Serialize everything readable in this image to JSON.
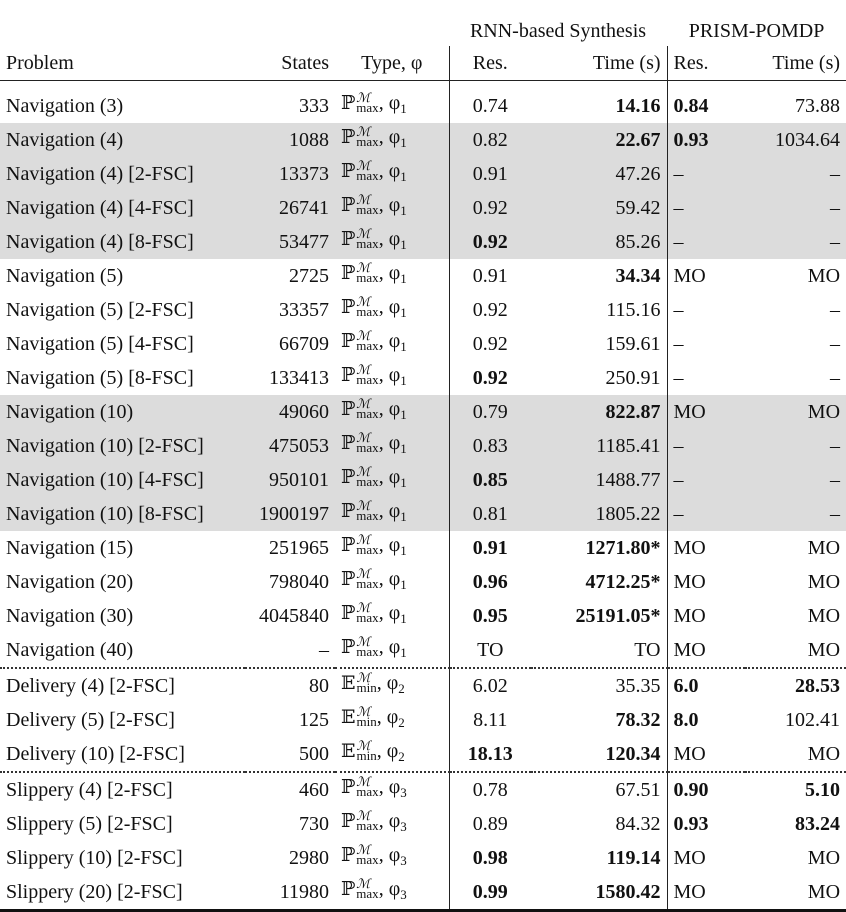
{
  "header": {
    "group_rnn": "RNN-based Synthesis",
    "group_prism": "PRISM-POMDP",
    "columns": [
      "Problem",
      "States",
      "Type, φ",
      "Res.",
      "Time (s)",
      "Res.",
      "Time (s)"
    ]
  },
  "table": {
    "rows": [
      {
        "cells": [
          "Navigation (3)",
          "333",
          "0.74",
          "14.16",
          "0.84",
          "73.88"
        ],
        "type": {
          "symbol": "ℙ",
          "sup": "ℳ",
          "sub": "max",
          "phi": ", φ",
          "index": "1"
        },
        "bold": [
          3,
          4
        ],
        "shaded": false,
        "dotted": false
      },
      {
        "cells": [
          "Navigation (4)",
          "1088",
          "0.82",
          "22.67",
          "0.93",
          "1034.64"
        ],
        "type": {
          "symbol": "ℙ",
          "sup": "ℳ",
          "sub": "max",
          "phi": ", φ",
          "index": "1"
        },
        "bold": [
          3,
          4
        ],
        "shaded": true,
        "dotted": false
      },
      {
        "cells": [
          "Navigation (4) [2-FSC]",
          "13373",
          "0.91",
          "47.26",
          "–",
          "–"
        ],
        "type": {
          "symbol": "ℙ",
          "sup": "ℳ",
          "sub": "max",
          "phi": ", φ",
          "index": "1"
        },
        "bold": [],
        "shaded": true,
        "dotted": false
      },
      {
        "cells": [
          "Navigation (4) [4-FSC]",
          "26741",
          "0.92",
          "59.42",
          "–",
          "–"
        ],
        "type": {
          "symbol": "ℙ",
          "sup": "ℳ",
          "sub": "max",
          "phi": ", φ",
          "index": "1"
        },
        "bold": [],
        "shaded": true,
        "dotted": false
      },
      {
        "cells": [
          "Navigation (4) [8-FSC]",
          "53477",
          "0.92",
          "85.26",
          "–",
          "–"
        ],
        "type": {
          "symbol": "ℙ",
          "sup": "ℳ",
          "sub": "max",
          "phi": ", φ",
          "index": "1"
        },
        "bold": [
          2
        ],
        "shaded": true,
        "dotted": false
      },
      {
        "cells": [
          "Navigation (5)",
          "2725",
          "0.91",
          "34.34",
          "MO",
          "MO"
        ],
        "type": {
          "symbol": "ℙ",
          "sup": "ℳ",
          "sub": "max",
          "phi": ", φ",
          "index": "1"
        },
        "bold": [
          3
        ],
        "shaded": false,
        "dotted": false
      },
      {
        "cells": [
          "Navigation (5) [2-FSC]",
          "33357",
          "0.92",
          "115.16",
          "–",
          "–"
        ],
        "type": {
          "symbol": "ℙ",
          "sup": "ℳ",
          "sub": "max",
          "phi": ", φ",
          "index": "1"
        },
        "bold": [],
        "shaded": false,
        "dotted": false
      },
      {
        "cells": [
          "Navigation (5) [4-FSC]",
          "66709",
          "0.92",
          "159.61",
          "–",
          "–"
        ],
        "type": {
          "symbol": "ℙ",
          "sup": "ℳ",
          "sub": "max",
          "phi": ", φ",
          "index": "1"
        },
        "bold": [],
        "shaded": false,
        "dotted": false
      },
      {
        "cells": [
          "Navigation (5) [8-FSC]",
          "133413",
          "0.92",
          "250.91",
          "–",
          "–"
        ],
        "type": {
          "symbol": "ℙ",
          "sup": "ℳ",
          "sub": "max",
          "phi": ", φ",
          "index": "1"
        },
        "bold": [
          2
        ],
        "shaded": false,
        "dotted": false
      },
      {
        "cells": [
          "Navigation (10)",
          "49060",
          "0.79",
          "822.87",
          "MO",
          "MO"
        ],
        "type": {
          "symbol": "ℙ",
          "sup": "ℳ",
          "sub": "max",
          "phi": ", φ",
          "index": "1"
        },
        "bold": [
          3
        ],
        "shaded": true,
        "dotted": false
      },
      {
        "cells": [
          "Navigation (10) [2-FSC]",
          "475053",
          "0.83",
          "1185.41",
          "–",
          "–"
        ],
        "type": {
          "symbol": "ℙ",
          "sup": "ℳ",
          "sub": "max",
          "phi": ", φ",
          "index": "1"
        },
        "bold": [],
        "shaded": true,
        "dotted": false
      },
      {
        "cells": [
          "Navigation (10) [4-FSC]",
          "950101",
          "0.85",
          "1488.77",
          "–",
          "–"
        ],
        "type": {
          "symbol": "ℙ",
          "sup": "ℳ",
          "sub": "max",
          "phi": ", φ",
          "index": "1"
        },
        "bold": [
          2
        ],
        "shaded": true,
        "dotted": false
      },
      {
        "cells": [
          "Navigation (10) [8-FSC]",
          "1900197",
          "0.81",
          "1805.22",
          "–",
          "–"
        ],
        "type": {
          "symbol": "ℙ",
          "sup": "ℳ",
          "sub": "max",
          "phi": ", φ",
          "index": "1"
        },
        "bold": [],
        "shaded": true,
        "dotted": false
      },
      {
        "cells": [
          "Navigation (15)",
          "251965",
          "0.91",
          "1271.80*",
          "MO",
          "MO"
        ],
        "type": {
          "symbol": "ℙ",
          "sup": "ℳ",
          "sub": "max",
          "phi": ", φ",
          "index": "1"
        },
        "bold": [
          2,
          3
        ],
        "shaded": false,
        "dotted": false
      },
      {
        "cells": [
          "Navigation (20)",
          "798040",
          "0.96",
          "4712.25*",
          "MO",
          "MO"
        ],
        "type": {
          "symbol": "ℙ",
          "sup": "ℳ",
          "sub": "max",
          "phi": ", φ",
          "index": "1"
        },
        "bold": [
          2,
          3
        ],
        "shaded": false,
        "dotted": false
      },
      {
        "cells": [
          "Navigation (30)",
          "4045840",
          "0.95",
          "25191.05*",
          "MO",
          "MO"
        ],
        "type": {
          "symbol": "ℙ",
          "sup": "ℳ",
          "sub": "max",
          "phi": ", φ",
          "index": "1"
        },
        "bold": [
          2,
          3
        ],
        "shaded": false,
        "dotted": false
      },
      {
        "cells": [
          "Navigation (40)",
          "–",
          "TO",
          "TO",
          "MO",
          "MO"
        ],
        "type": {
          "symbol": "ℙ",
          "sup": "ℳ",
          "sub": "max",
          "phi": ", φ",
          "index": "1"
        },
        "bold": [],
        "shaded": false,
        "dotted": false
      },
      {
        "cells": [
          "Delivery (4) [2-FSC]",
          "80",
          "6.02",
          "35.35",
          "6.0",
          "28.53"
        ],
        "type": {
          "symbol": "𝔼",
          "sup": "ℳ",
          "sub": "min",
          "phi": ", φ",
          "index": "2"
        },
        "bold": [
          4,
          5
        ],
        "shaded": false,
        "dotted": true
      },
      {
        "cells": [
          "Delivery (5) [2-FSC]",
          "125",
          "8.11",
          "78.32",
          "8.0",
          "102.41"
        ],
        "type": {
          "symbol": "𝔼",
          "sup": "ℳ",
          "sub": "min",
          "phi": ", φ",
          "index": "2"
        },
        "bold": [
          3,
          4
        ],
        "shaded": false,
        "dotted": false
      },
      {
        "cells": [
          "Delivery (10) [2-FSC]",
          "500",
          "18.13",
          "120.34",
          "MO",
          "MO"
        ],
        "type": {
          "symbol": "𝔼",
          "sup": "ℳ",
          "sub": "min",
          "phi": ", φ",
          "index": "2"
        },
        "bold": [
          2,
          3
        ],
        "shaded": false,
        "dotted": false
      },
      {
        "cells": [
          "Slippery (4) [2-FSC]",
          "460",
          "0.78",
          "67.51",
          "0.90",
          "5.10"
        ],
        "type": {
          "symbol": "ℙ",
          "sup": "ℳ",
          "sub": "max",
          "phi": ", φ",
          "index": "3"
        },
        "bold": [
          4,
          5
        ],
        "shaded": false,
        "dotted": true
      },
      {
        "cells": [
          "Slippery (5) [2-FSC]",
          "730",
          "0.89",
          "84.32",
          "0.93",
          "83.24"
        ],
        "type": {
          "symbol": "ℙ",
          "sup": "ℳ",
          "sub": "max",
          "phi": ", φ",
          "index": "3"
        },
        "bold": [
          4,
          5
        ],
        "shaded": false,
        "dotted": false
      },
      {
        "cells": [
          "Slippery (10) [2-FSC]",
          "2980",
          "0.98",
          "119.14",
          "MO",
          "MO"
        ],
        "type": {
          "symbol": "ℙ",
          "sup": "ℳ",
          "sub": "max",
          "phi": ", φ",
          "index": "3"
        },
        "bold": [
          2,
          3
        ],
        "shaded": false,
        "dotted": false
      },
      {
        "cells": [
          "Slippery (20) [2-FSC]",
          "11980",
          "0.99",
          "1580.42",
          "MO",
          "MO"
        ],
        "type": {
          "symbol": "ℙ",
          "sup": "ℳ",
          "sub": "max",
          "phi": ", φ",
          "index": "3"
        },
        "bold": [
          2,
          3
        ],
        "shaded": false,
        "dotted": false
      }
    ]
  }
}
